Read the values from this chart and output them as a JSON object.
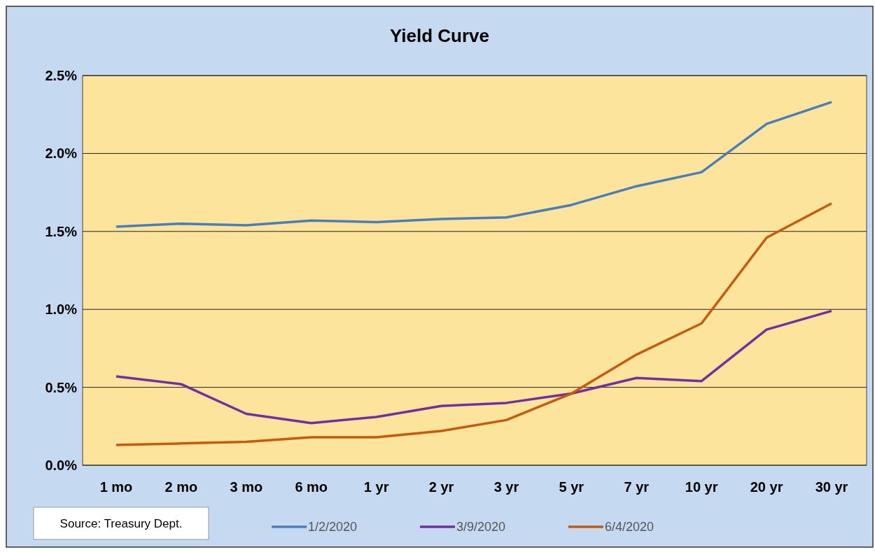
{
  "chart_data": {
    "type": "line",
    "title": "Yield Curve",
    "categories": [
      "1 mo",
      "2 mo",
      "3 mo",
      "6 mo",
      "1 yr",
      "2 yr",
      "3 yr",
      "5 yr",
      "7 yr",
      "10 yr",
      "20 yr",
      "30 yr"
    ],
    "series": [
      {
        "name": "1/2/2020",
        "color": "#4a7ebb",
        "values": [
          1.53,
          1.55,
          1.54,
          1.57,
          1.56,
          1.58,
          1.59,
          1.67,
          1.79,
          1.88,
          2.19,
          2.33
        ]
      },
      {
        "name": "3/9/2020",
        "color": "#7030a0",
        "values": [
          0.57,
          0.52,
          0.33,
          0.27,
          0.31,
          0.38,
          0.4,
          0.46,
          0.56,
          0.54,
          0.87,
          0.99
        ]
      },
      {
        "name": "6/4/2020",
        "color": "#c55a11",
        "values": [
          0.13,
          0.14,
          0.15,
          0.18,
          0.18,
          0.22,
          0.29,
          0.46,
          0.71,
          0.91,
          1.46,
          1.68
        ]
      }
    ],
    "ylim": [
      0,
      2.5
    ],
    "yticks": [
      {
        "value": 0,
        "label": "0.0%"
      },
      {
        "value": 0.5,
        "label": "0.5%"
      },
      {
        "value": 1,
        "label": "1.0%"
      },
      {
        "value": 1.5,
        "label": "1.5%"
      },
      {
        "value": 2,
        "label": "2.0%"
      },
      {
        "value": 2.5,
        "label": "2.5%"
      }
    ],
    "grid": "y",
    "legend": "bottom",
    "marker": "none",
    "line_style": "solid",
    "annotations": [
      "Source: Treasury Dept."
    ]
  }
}
